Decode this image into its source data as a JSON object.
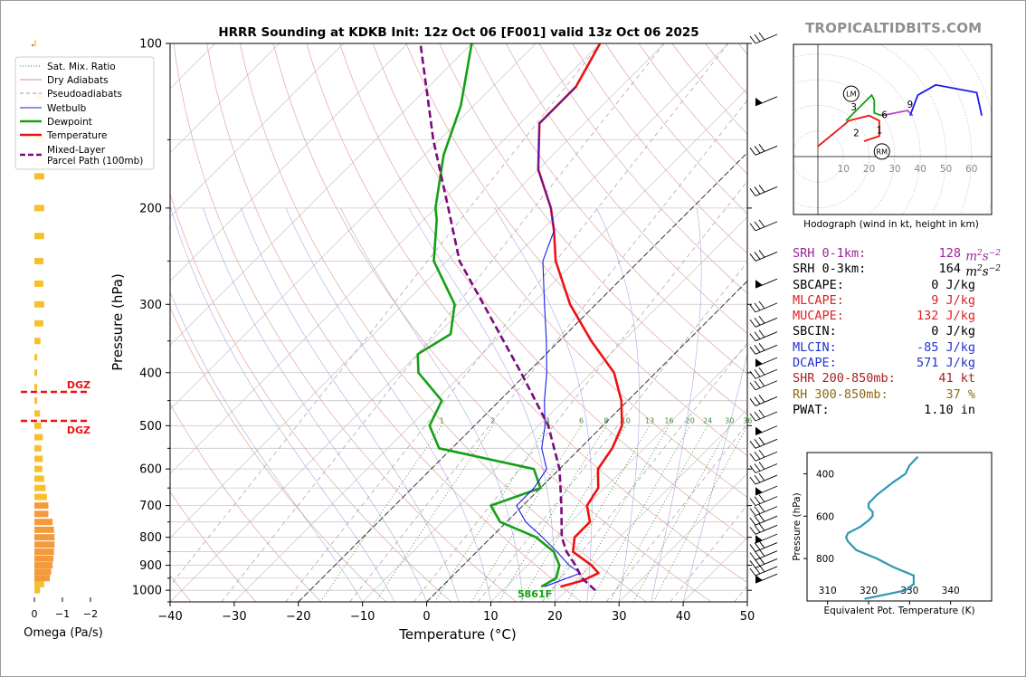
{
  "title": "HRRR Sounding at KDKB Init: 12z Oct 06 [F001] valid 13z Oct 06 2025",
  "site": "TROPICALTIDBITS.COM",
  "skewt": {
    "xlabel": "Temperature (°C)",
    "ylabel": "Pressure (hPa)",
    "x_ticks": [
      "−40",
      "−30",
      "−20",
      "−10",
      "0",
      "10",
      "20",
      "30",
      "40",
      "50"
    ],
    "y_ticks": [
      "100",
      "200",
      "300",
      "400",
      "500",
      "600",
      "700",
      "800",
      "900",
      "1000"
    ],
    "mixing_ratio_labels": [
      "1",
      "2",
      "4",
      "6",
      "8",
      "10",
      "13",
      "16",
      "20",
      "24",
      "30",
      "36"
    ],
    "lcl_label": "5861F",
    "legend": [
      {
        "label": "Sat. Mix. Ratio",
        "color": "#2e7d2e",
        "style": "dotted"
      },
      {
        "label": "Dry Adiabats",
        "color": "#d98c8c",
        "style": "solid"
      },
      {
        "label": "Pseudoadiabats",
        "color": "#999999",
        "style": "dashed"
      },
      {
        "label": "Wetbulb",
        "color": "#1a1aee",
        "style": "solid"
      },
      {
        "label": "Dewpoint",
        "color": "#14a014",
        "style": "solid"
      },
      {
        "label": "Temperature",
        "color": "#ee1111",
        "style": "solid"
      },
      {
        "label": "Mixed-Layer\nParcel Path (100mb)",
        "color": "#7b0a7b",
        "style": "dashed"
      }
    ]
  },
  "omega": {
    "xlabel": "Omega (Pa/s)",
    "x_ticks": [
      "0",
      "−1",
      "−2"
    ],
    "dgz_label": "DGZ"
  },
  "hodograph": {
    "caption": "Hodograph (wind in kt, height in km)",
    "ring_labels": [
      "10",
      "20",
      "30",
      "40",
      "50",
      "60"
    ],
    "height_labels": [
      "1",
      "2",
      "3",
      "6",
      "9"
    ],
    "markers": [
      "LM",
      "RM"
    ]
  },
  "theta_e": {
    "xlabel": "Equivalent Pot. Temperature (K)",
    "ylabel": "Pressure (hPa)",
    "x_ticks": [
      "310",
      "320",
      "330",
      "340"
    ],
    "y_ticks": [
      "400",
      "600",
      "800"
    ]
  },
  "params": [
    {
      "label": "SRH 0-1km:",
      "value": "128",
      "unit": "m2s-2",
      "color": "#9b239b"
    },
    {
      "label": "SRH 0-3km:",
      "value": "164",
      "unit": "m2s-2",
      "color": "#000000"
    },
    {
      "label": "SBCAPE:",
      "value": "0 J/kg",
      "color": "#000000"
    },
    {
      "label": "MLCAPE:",
      "value": "9 J/kg",
      "color": "#dd2222"
    },
    {
      "label": "MUCAPE:",
      "value": "132 J/kg",
      "color": "#dd2222"
    },
    {
      "label": "SBCIN:",
      "value": "0 J/kg",
      "color": "#000000"
    },
    {
      "label": "MLCIN:",
      "value": "-85 J/kg",
      "color": "#2233cc"
    },
    {
      "label": "DCAPE:",
      "value": "571 J/kg",
      "color": "#2233cc"
    },
    {
      "label": "SHR 200-850mb:",
      "value": "41 kt",
      "color": "#aa2222"
    },
    {
      "label": "RH 300-850mb:",
      "value": "37 %",
      "color": "#8a6a10"
    },
    {
      "label": "PWAT:",
      "value": "1.10 in",
      "color": "#000000"
    }
  ],
  "chart_data": [
    {
      "type": "line",
      "title": "HRRR Sounding at KDKB Init: 12z Oct 06 [F001] valid 13z Oct 06 2025",
      "xlabel": "Temperature (°C)",
      "ylabel": "Pressure (hPa)",
      "xlim": [
        -40,
        50
      ],
      "ylim": [
        1050,
        100
      ],
      "y_scale": "log",
      "skew": "45 deg",
      "series": [
        {
          "name": "Temperature",
          "color": "#ee1111",
          "points": [
            [
              985,
              18.5
            ],
            [
              960,
              21
            ],
            [
              930,
              22.3
            ],
            [
              900,
              20
            ],
            [
              850,
              15
            ],
            [
              800,
              13
            ],
            [
              750,
              13
            ],
            [
              700,
              10
            ],
            [
              650,
              9
            ],
            [
              600,
              6
            ],
            [
              550,
              5
            ],
            [
              500,
              3
            ],
            [
              450,
              -1
            ],
            [
              400,
              -6.5
            ],
            [
              350,
              -15
            ],
            [
              300,
              -24
            ],
            [
              250,
              -33
            ],
            [
              220,
              -38
            ],
            [
              200,
              -42
            ],
            [
              170,
              -50
            ],
            [
              140,
              -57
            ],
            [
              120,
              -57
            ],
            [
              100,
              -60
            ]
          ]
        },
        {
          "name": "Dewpoint",
          "color": "#14a014",
          "points": [
            [
              985,
              15.5
            ],
            [
              950,
              16.5
            ],
            [
              900,
              15
            ],
            [
              850,
              12
            ],
            [
              800,
              7
            ],
            [
              750,
              -1
            ],
            [
              700,
              -5
            ],
            [
              650,
              0
            ],
            [
              600,
              -4
            ],
            [
              550,
              -22
            ],
            [
              500,
              -27
            ],
            [
              450,
              -29
            ],
            [
              400,
              -37
            ],
            [
              370,
              -40
            ],
            [
              340,
              -38
            ],
            [
              300,
              -42
            ],
            [
              250,
              -52
            ],
            [
              210,
              -58
            ],
            [
              200,
              -60
            ],
            [
              160,
              -67
            ],
            [
              130,
              -72
            ],
            [
              100,
              -80
            ]
          ]
        },
        {
          "name": "Wetbulb",
          "color": "#1a1aee",
          "points": [
            [
              985,
              16
            ],
            [
              930,
              19.5
            ],
            [
              900,
              16.5
            ],
            [
              850,
              12.5
            ],
            [
              800,
              8
            ],
            [
              750,
              3
            ],
            [
              700,
              -1
            ],
            [
              650,
              -1
            ],
            [
              600,
              -2
            ],
            [
              550,
              -6
            ],
            [
              500,
              -9
            ],
            [
              450,
              -13
            ],
            [
              400,
              -17
            ],
            [
              350,
              -22
            ],
            [
              300,
              -28
            ],
            [
              250,
              -35
            ],
            [
              220,
              -38
            ],
            [
              200,
              -42
            ],
            [
              170,
              -50
            ],
            [
              140,
              -57
            ],
            [
              120,
              -57
            ]
          ]
        },
        {
          "name": "Mixed-Layer Parcel Path (100mb)",
          "color": "#7b0a7b",
          "points": [
            [
              1000,
              24.5
            ],
            [
              950,
              20.5
            ],
            [
              900,
              17.5
            ],
            [
              850,
              14
            ],
            [
              800,
              11
            ],
            [
              700,
              6
            ],
            [
              600,
              0
            ],
            [
              500,
              -8.5
            ],
            [
              400,
              -21
            ],
            [
              300,
              -37.5
            ],
            [
              250,
              -48
            ],
            [
              200,
              -58
            ],
            [
              150,
              -71
            ],
            [
              100,
              -88
            ]
          ]
        }
      ]
    },
    {
      "type": "bar",
      "title": "",
      "xlabel": "Omega (Pa/s)",
      "xlim": [
        0,
        -2
      ],
      "categories": [
        "1000",
        "975",
        "950",
        "925",
        "900",
        "875",
        "850",
        "825",
        "800",
        "775",
        "750",
        "725",
        "700",
        "675",
        "650",
        "625",
        "600",
        "575",
        "550",
        "525",
        "500",
        "475",
        "450",
        "425",
        "400",
        "375",
        "350",
        "325",
        "300",
        "275",
        "250",
        "225",
        "200",
        "175",
        "150",
        "125",
        "100"
      ],
      "values": [
        -0.2,
        -0.35,
        -0.55,
        -0.6,
        -0.65,
        -0.68,
        -0.7,
        -0.72,
        -0.72,
        -0.7,
        -0.65,
        -0.5,
        -0.5,
        -0.45,
        -0.4,
        -0.35,
        -0.28,
        -0.3,
        -0.25,
        -0.3,
        -0.25,
        -0.2,
        -0.1,
        -0.1,
        -0.1,
        -0.1,
        -0.22,
        -0.32,
        -0.35,
        -0.32,
        -0.32,
        -0.35,
        -0.35,
        -0.35,
        -0.35,
        -0.3,
        -0.05
      ]
    },
    {
      "type": "line",
      "title": "",
      "xlabel": "Equivalent Pot. Temperature (K)",
      "ylabel": "Pressure (hPa)",
      "xlim": [
        305,
        350
      ],
      "ylim": [
        1000,
        300
      ],
      "series": [
        {
          "name": "",
          "color": "#2f97b0",
          "x": [
            319,
            329,
            331,
            331,
            326,
            322,
            317,
            315,
            314.5,
            315,
            318,
            320,
            321,
            321,
            320,
            320,
            322,
            326,
            329,
            330,
            332
          ],
          "y": [
            990,
            950,
            920,
            880,
            840,
            800,
            760,
            720,
            700,
            680,
            650,
            620,
            600,
            580,
            560,
            540,
            500,
            440,
            400,
            360,
            320
          ]
        }
      ]
    },
    {
      "type": "line",
      "title": "",
      "xlabel": "",
      "ylabel": "",
      "series": [
        {
          "name": "0-3 km",
          "color": "#ee1111",
          "x": [
            0,
            11,
            12,
            20,
            24,
            24,
            18
          ],
          "y": [
            4,
            13,
            14,
            16,
            14,
            8,
            6
          ]
        },
        {
          "name": "3-6 km",
          "color": "#14a014",
          "x": [
            11,
            21,
            22,
            22,
            25
          ],
          "y": [
            14,
            24,
            22,
            17,
            16
          ]
        },
        {
          "name": "6-9 km",
          "color": "#bb44cc",
          "x": [
            25,
            30,
            35,
            36,
            37
          ],
          "y": [
            16,
            17,
            18,
            17,
            16
          ]
        },
        {
          "name": "9+ km",
          "color": "#1a1aee",
          "x": [
            36,
            39,
            46,
            62,
            64
          ],
          "y": [
            16,
            24,
            28,
            25,
            16
          ]
        }
      ]
    }
  ]
}
